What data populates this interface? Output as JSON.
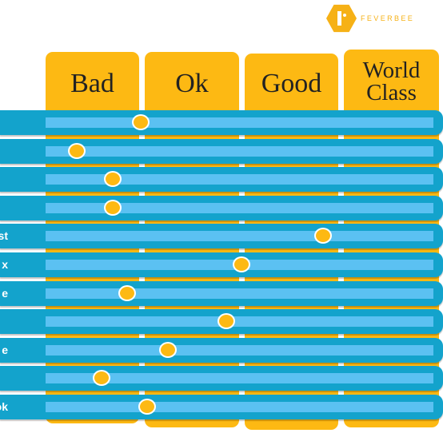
{
  "brand": {
    "name": "FEVERBEE",
    "color": "#F6B116"
  },
  "colors": {
    "column": "#FDB913",
    "row_band": "#13A3CC",
    "row_track": "#5BC1F2",
    "marker": "#FDB913"
  },
  "chart_data": {
    "type": "scatter",
    "title": "",
    "categories": [
      "Bad",
      "Ok",
      "Good",
      "World Class"
    ],
    "x_scale": "ordinal rating, 0 = left edge of Bad, 4 = right edge of World Class",
    "xlim": [
      0,
      4
    ],
    "rows": [
      {
        "label": "",
        "rating": 0.98
      },
      {
        "label": "",
        "rating": 0.32
      },
      {
        "label": "",
        "rating": 0.69
      },
      {
        "label": "",
        "rating": 0.69
      },
      {
        "label": "st",
        "rating": 2.86
      },
      {
        "label": "x",
        "rating": 2.02
      },
      {
        "label": "e",
        "rating": 0.84
      },
      {
        "label": "",
        "rating": 1.86
      },
      {
        "label": "e",
        "rating": 1.26
      },
      {
        "label": "",
        "rating": 0.58
      },
      {
        "label": "ok",
        "rating": 1.05
      }
    ]
  }
}
